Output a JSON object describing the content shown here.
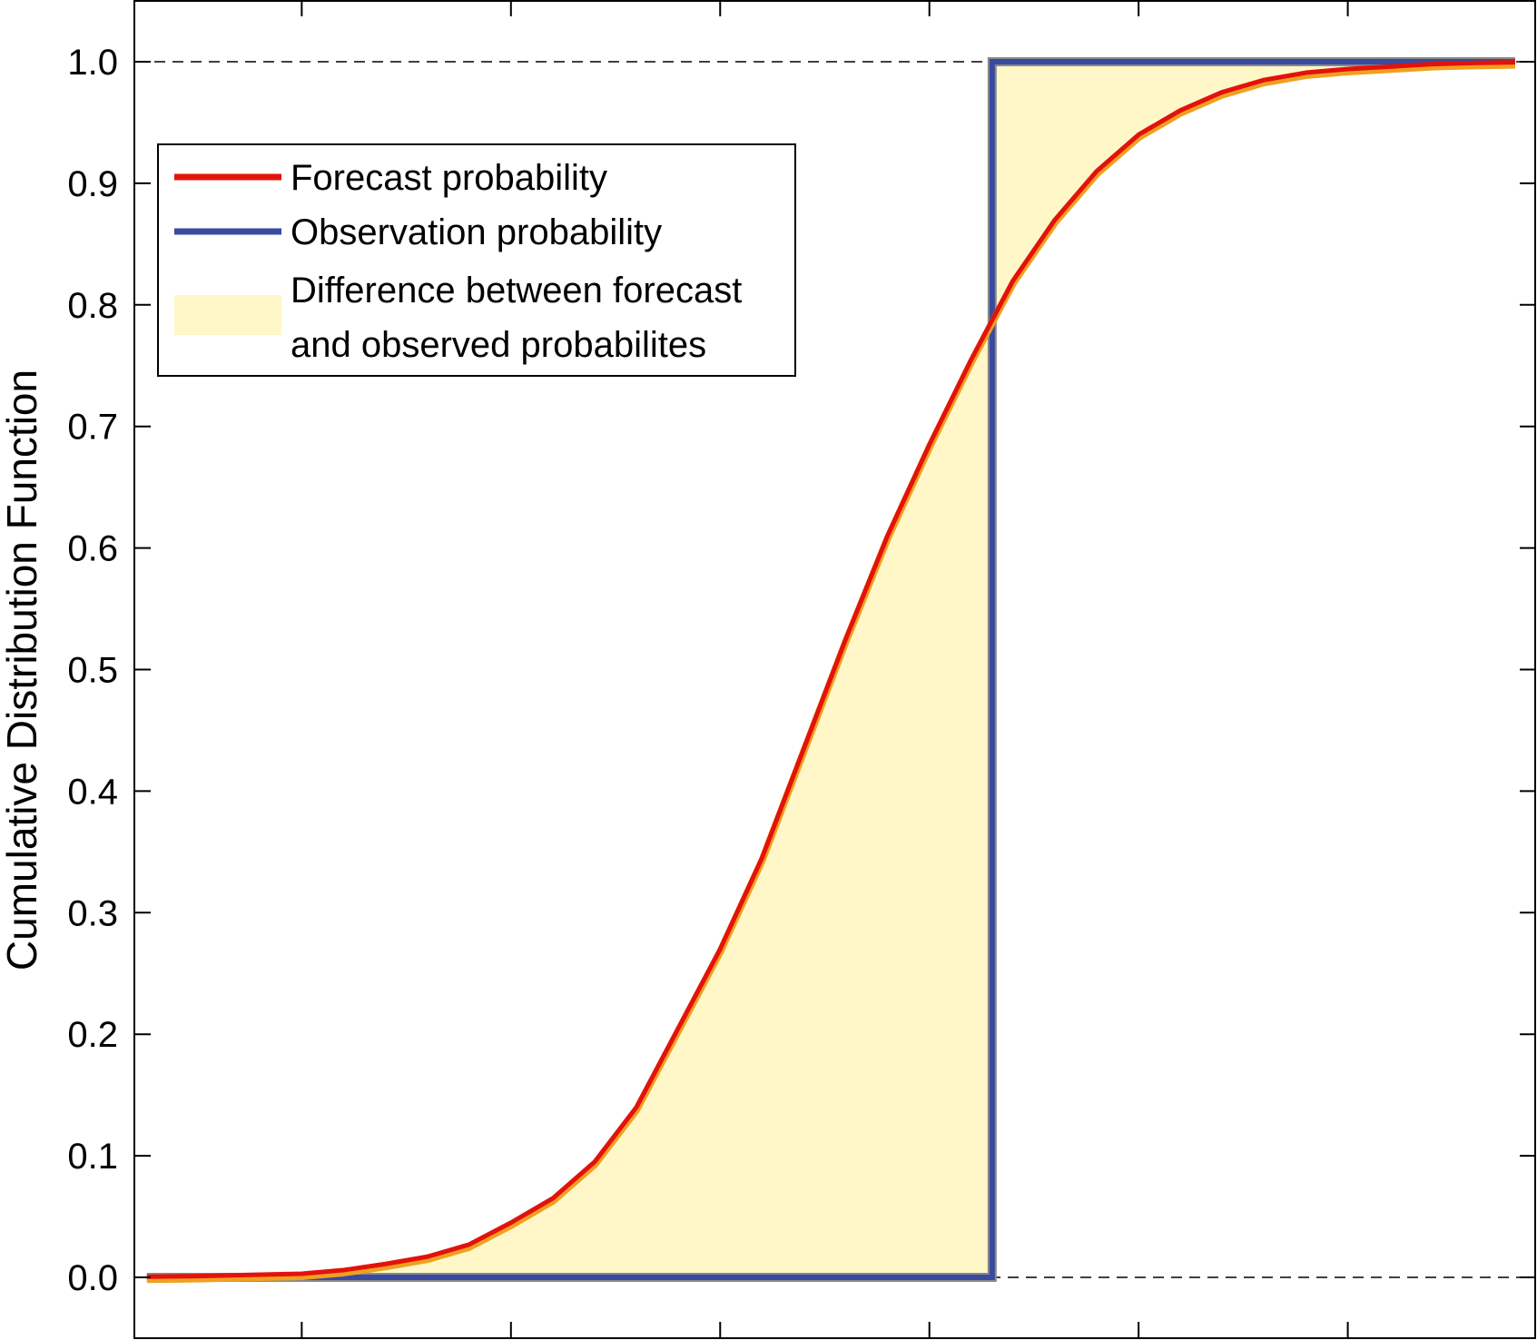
{
  "chart_data": {
    "type": "line",
    "title": "",
    "xlabel": "",
    "ylabel": "Cumulative Distribution Function",
    "ylim": [
      0,
      1.0
    ],
    "xlim": [
      -1.9,
      1.45
    ],
    "yticks": [
      "0.0",
      "0.1",
      "0.2",
      "0.3",
      "0.4",
      "0.5",
      "0.6",
      "0.7",
      "0.8",
      "0.9",
      "1.0"
    ],
    "xticks": [
      -1.5,
      -1.0,
      -0.5,
      0.0,
      0.5,
      1.0,
      1.5
    ],
    "x_tick_labels_shown": false,
    "reference_lines": [
      0,
      1
    ],
    "legend_position": "top-left",
    "colors": {
      "forecast": "#e3120b",
      "forecast_edge": "#f0a020",
      "observation": "#3a4aa0",
      "difference": "#fff7c8"
    },
    "series": [
      {
        "name": "Forecast probability",
        "style": "line",
        "x": [
          -2.0,
          -1.75,
          -1.5,
          -1.4,
          -1.3,
          -1.2,
          -1.1,
          -1.0,
          -0.9,
          -0.8,
          -0.7,
          -0.6,
          -0.5,
          -0.4,
          -0.3,
          -0.2,
          -0.1,
          0.0,
          0.1,
          0.2,
          0.3,
          0.4,
          0.5,
          0.6,
          0.7,
          0.8,
          0.9,
          1.0,
          1.1,
          1.2,
          1.3,
          1.4,
          1.6,
          1.7
        ],
        "y": [
          0.0,
          0.001,
          0.003,
          0.006,
          0.011,
          0.017,
          0.027,
          0.045,
          0.065,
          0.095,
          0.14,
          0.205,
          0.27,
          0.345,
          0.435,
          0.525,
          0.61,
          0.685,
          0.755,
          0.82,
          0.87,
          0.91,
          0.94,
          0.96,
          0.975,
          0.985,
          0.991,
          0.994,
          0.996,
          0.998,
          0.999,
          0.9995,
          1.0,
          1.0
        ]
      },
      {
        "name": "Observation probability",
        "style": "step",
        "observation_x": 0.15,
        "x": [
          -2.0,
          0.15,
          0.15,
          2.0
        ],
        "y": [
          0.0,
          0.0,
          1.0,
          1.0
        ]
      }
    ],
    "legend": [
      {
        "name": "Forecast probability",
        "kind": "line",
        "color": "#e3120b"
      },
      {
        "name": "Observation probability",
        "kind": "line",
        "color": "#3a4aa0"
      },
      {
        "name": "Difference between forecast",
        "name_line2": "and observed probabilites",
        "kind": "patch",
        "color": "#fff7c8"
      }
    ]
  }
}
